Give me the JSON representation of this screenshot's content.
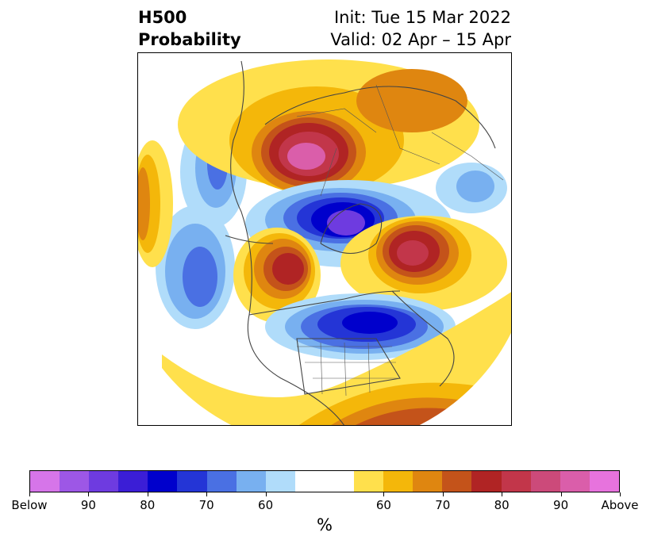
{
  "title": {
    "left_line1": "H500",
    "left_line2": "Probability",
    "right_line1": "Init: Tue 15 Mar 2022",
    "right_line2": "Valid: 02 Apr – 15 Apr"
  },
  "map": {
    "projection": "north-polar-stereographic",
    "overlays": [
      "country-borders",
      "us-state-borders",
      "coastlines"
    ],
    "anomaly_centers": [
      {
        "region": "Central Siberia / Arctic Russia",
        "category": "Above",
        "peak_percent": 90
      },
      {
        "region": "Northeast Pacific / Alaska",
        "category": "Above",
        "peak_percent": 80
      },
      {
        "region": "Greenland / North Atlantic",
        "category": "Above",
        "peak_percent": 85
      },
      {
        "region": "North Pacific",
        "category": "Below",
        "peak_percent": 70
      },
      {
        "region": "Western Russia / Scandinavia",
        "category": "Below",
        "peak_percent": 70
      },
      {
        "region": "Arctic Ocean / Barents Sea",
        "category": "Below",
        "peak_percent": 90
      },
      {
        "region": "Hudson Bay / Eastern Canada",
        "category": "Below",
        "peak_percent": 80
      },
      {
        "region": "Southeastern United States / Gulf",
        "category": "Above",
        "peak_percent": 75
      }
    ]
  },
  "colorbar": {
    "colors": [
      "#d675e9",
      "#9d57e6",
      "#6e3be0",
      "#3b1ed6",
      "#0000cc",
      "#2435d6",
      "#4a70e3",
      "#78b0f0",
      "#b0dcfa",
      "#ffffff",
      "#ffffff",
      "#ffe04c",
      "#f4b70a",
      "#df8610",
      "#c4531a",
      "#b02424",
      "#c2364a",
      "#cc4a7a",
      "#da5eaa",
      "#e773dd"
    ],
    "tick_labels": [
      "Below",
      "90",
      "80",
      "70",
      "60",
      "60",
      "70",
      "80",
      "90",
      "Above"
    ],
    "unit": "%"
  }
}
